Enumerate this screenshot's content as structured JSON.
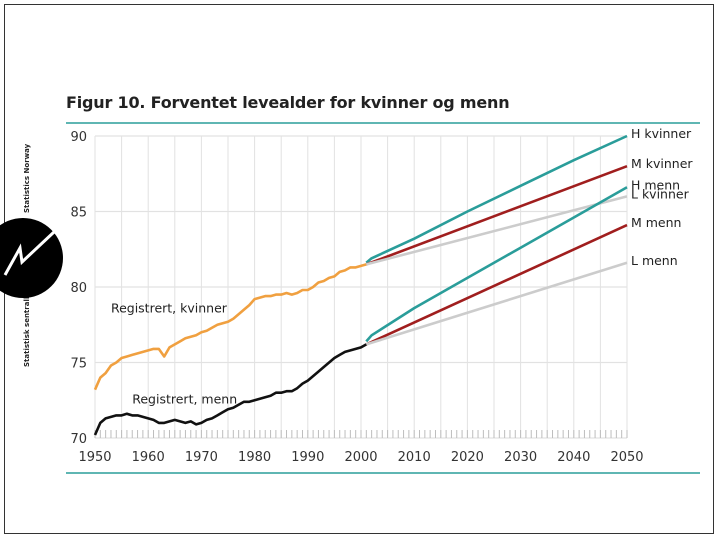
{
  "publisher": {
    "name_top": "Statistics Norway",
    "name_bottom": "Statistisk sentralbyrå"
  },
  "colors": {
    "women_registered": "#f0a040",
    "men_registered": "#111111",
    "high": "#2a9d9a",
    "medium": "#a01e1e",
    "low": "#cccccc",
    "rule": "#2a9d9a",
    "grid": "#e2e2e2"
  },
  "chart_data": {
    "type": "line",
    "title": "Figur 10. Forventet levealder for kvinner og menn",
    "xlabel": "",
    "ylabel": "",
    "xlim": [
      1950,
      2050
    ],
    "ylim": [
      70,
      90
    ],
    "x_ticks": [
      1950,
      1960,
      1970,
      1980,
      1990,
      2000,
      2010,
      2020,
      2030,
      2040,
      2050
    ],
    "y_ticks": [
      70,
      75,
      80,
      85,
      90
    ],
    "grid": true,
    "series": [
      {
        "name": "Registrert, kvinner",
        "color_key": "women_registered",
        "x": [
          1950,
          1951,
          1952,
          1953,
          1954,
          1955,
          1956,
          1957,
          1958,
          1959,
          1960,
          1961,
          1962,
          1963,
          1964,
          1965,
          1966,
          1967,
          1968,
          1969,
          1970,
          1971,
          1972,
          1973,
          1974,
          1975,
          1976,
          1977,
          1978,
          1979,
          1980,
          1981,
          1982,
          1983,
          1984,
          1985,
          1986,
          1987,
          1988,
          1989,
          1990,
          1991,
          1992,
          1993,
          1994,
          1995,
          1996,
          1997,
          1998,
          1999,
          2000,
          2001
        ],
        "y": [
          73.2,
          74.0,
          74.3,
          74.8,
          75.0,
          75.3,
          75.4,
          75.5,
          75.6,
          75.7,
          75.8,
          75.9,
          75.9,
          75.4,
          76.0,
          76.2,
          76.4,
          76.6,
          76.7,
          76.8,
          77.0,
          77.1,
          77.3,
          77.5,
          77.6,
          77.7,
          77.9,
          78.2,
          78.5,
          78.8,
          79.2,
          79.3,
          79.4,
          79.4,
          79.5,
          79.5,
          79.6,
          79.5,
          79.6,
          79.8,
          79.8,
          80.0,
          80.3,
          80.4,
          80.6,
          80.7,
          81.0,
          81.1,
          81.3,
          81.3,
          81.4,
          81.5
        ]
      },
      {
        "name": "Registrert, menn",
        "color_key": "men_registered",
        "x": [
          1950,
          1951,
          1952,
          1953,
          1954,
          1955,
          1956,
          1957,
          1958,
          1959,
          1960,
          1961,
          1962,
          1963,
          1964,
          1965,
          1966,
          1967,
          1968,
          1969,
          1970,
          1971,
          1972,
          1973,
          1974,
          1975,
          1976,
          1977,
          1978,
          1979,
          1980,
          1981,
          1982,
          1983,
          1984,
          1985,
          1986,
          1987,
          1988,
          1989,
          1990,
          1991,
          1992,
          1993,
          1994,
          1995,
          1996,
          1997,
          1998,
          1999,
          2000,
          2001
        ],
        "y": [
          70.2,
          71.0,
          71.3,
          71.4,
          71.5,
          71.5,
          71.6,
          71.5,
          71.5,
          71.4,
          71.3,
          71.2,
          71.0,
          71.0,
          71.1,
          71.2,
          71.1,
          71.0,
          71.1,
          70.9,
          71.0,
          71.2,
          71.3,
          71.5,
          71.7,
          71.9,
          72.0,
          72.2,
          72.4,
          72.4,
          72.5,
          72.6,
          72.7,
          72.8,
          73.0,
          73.0,
          73.1,
          73.1,
          73.3,
          73.6,
          73.8,
          74.1,
          74.4,
          74.7,
          75.0,
          75.3,
          75.5,
          75.7,
          75.8,
          75.9,
          76.0,
          76.2
        ]
      },
      {
        "name": "H kvinner",
        "color_key": "high",
        "x": [
          2001,
          2002,
          2010,
          2020,
          2030,
          2040,
          2050
        ],
        "y": [
          81.6,
          81.9,
          83.2,
          85.0,
          86.7,
          88.4,
          90.0
        ]
      },
      {
        "name": "M kvinner",
        "color_key": "medium",
        "x": [
          2001,
          2050
        ],
        "y": [
          81.5,
          88.0
        ]
      },
      {
        "name": "L kvinner",
        "color_key": "low",
        "x": [
          2001,
          2050
        ],
        "y": [
          81.5,
          86.0
        ]
      },
      {
        "name": "H menn",
        "color_key": "high",
        "x": [
          2001,
          2002,
          2010,
          2020,
          2030,
          2040,
          2050
        ],
        "y": [
          76.4,
          76.8,
          78.6,
          80.6,
          82.6,
          84.6,
          86.6
        ]
      },
      {
        "name": "M menn",
        "color_key": "medium",
        "x": [
          2001,
          2050
        ],
        "y": [
          76.2,
          84.1
        ]
      },
      {
        "name": "L menn",
        "color_key": "low",
        "x": [
          2001,
          2050
        ],
        "y": [
          76.2,
          81.6
        ]
      }
    ],
    "annotations": [
      {
        "text": "Registrert, kvinner",
        "x": 1953,
        "y": 78.3
      },
      {
        "text": "Registrert, menn",
        "x": 1957,
        "y": 72.3
      }
    ]
  }
}
